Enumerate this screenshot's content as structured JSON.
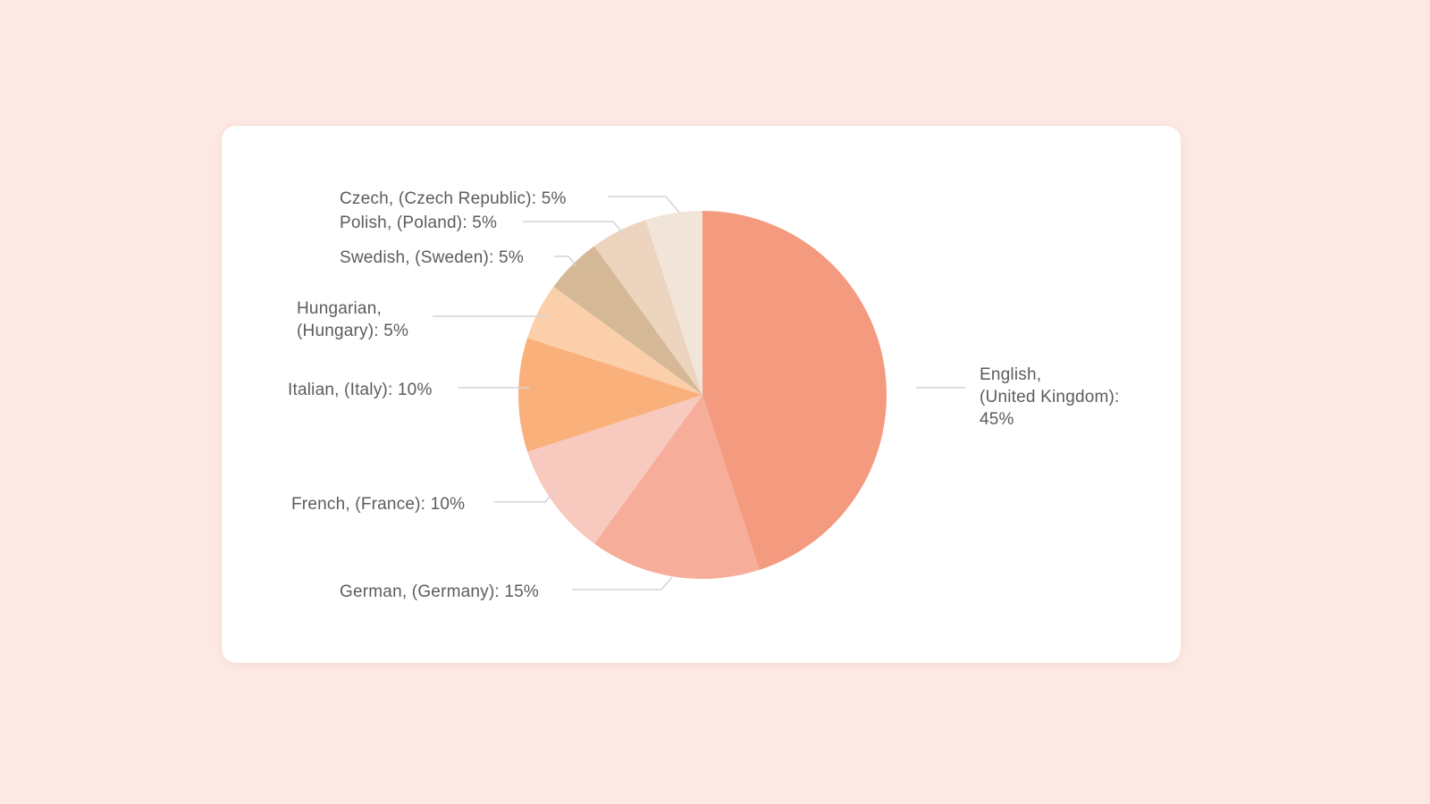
{
  "chart_data": {
    "type": "pie",
    "title": "",
    "start_angle_deg": 0,
    "direction": "clockwise",
    "slices": [
      {
        "label": "English, (United Kingdom)",
        "value": 45,
        "display": "English, (United Kingdom): 45%",
        "color": "#f49a7f"
      },
      {
        "label": "German, (Germany)",
        "value": 15,
        "display": "German, (Germany): 15%",
        "color": "#f6ae9a"
      },
      {
        "label": "French, (France)",
        "value": 10,
        "display": "French, (France): 10%",
        "color": "#f8c9bf"
      },
      {
        "label": "Italian, (Italy)",
        "value": 10,
        "display": "Italian, (Italy): 10%",
        "color": "#f9b07a"
      },
      {
        "label": "Hungarian, (Hungary)",
        "value": 5,
        "display": "Hungarian, (Hungary): 5%",
        "color": "#fbcfaa"
      },
      {
        "label": "Swedish, (Sweden)",
        "value": 5,
        "display": "Swedish, (Sweden): 5%",
        "color": "#d5b997"
      },
      {
        "label": "Polish, (Poland)",
        "value": 5,
        "display": "Polish, (Poland): 5%",
        "color": "#ecd4bf"
      },
      {
        "label": "Czech, (Czech Republic)",
        "value": 5,
        "display": "Czech, (Czech Republic): 5%",
        "color": "#f1e4d9"
      }
    ],
    "legend": "none (leader-line labels)"
  },
  "labels": {
    "english": [
      "English,",
      "(United Kingdom):",
      "45%"
    ],
    "german": "German, (Germany): 15%",
    "french": "French, (France): 10%",
    "italian": "Italian, (Italy): 10%",
    "hungarian": [
      "Hungarian,",
      "(Hungary): 5%"
    ],
    "swedish": "Swedish, (Sweden): 5%",
    "polish": "Polish, (Poland): 5%",
    "czech": "Czech, (Czech Republic): 5%"
  },
  "colors": {
    "page_background": "#fde9e3",
    "card_background": "#ffffff",
    "label_text": "#5c5c5c",
    "leader_line": "#d4d4d4"
  }
}
